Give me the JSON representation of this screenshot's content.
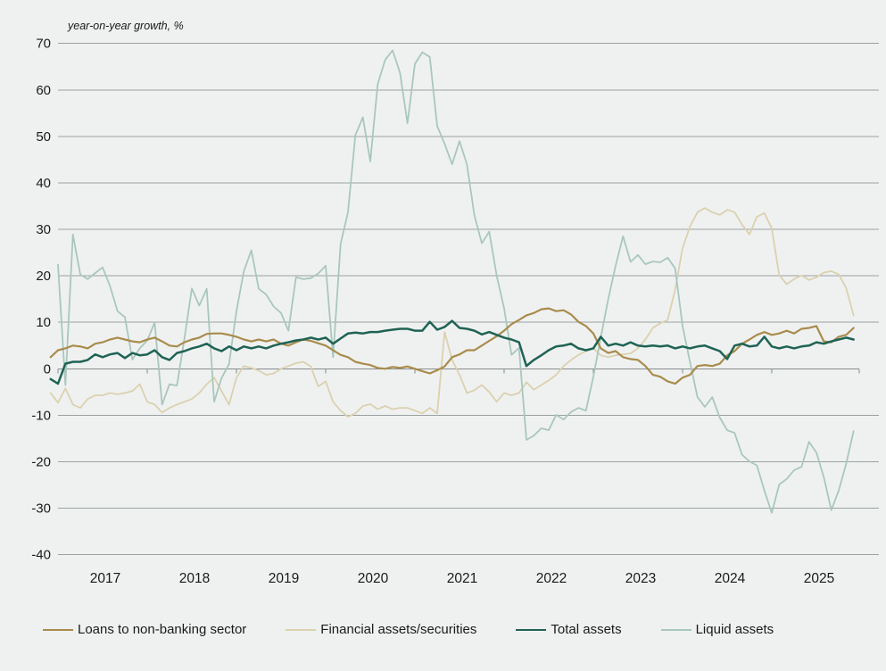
{
  "chart": {
    "unit_label": "year-on-year growth, %",
    "background": "#eff1f1",
    "grid_color": "#9ba1a1",
    "axis_color": "#868c8c",
    "text_color": "#1a1a1a",
    "y_axis": {
      "min": -40,
      "max": 70,
      "step": 10,
      "tick_labels": [
        "70",
        "60",
        "50",
        "40",
        "30",
        "20",
        "10",
        "0",
        "-10",
        "-20",
        "-30",
        "-40"
      ]
    },
    "x_axis": {
      "year_labels": [
        "2017",
        "2018",
        "2019",
        "2020",
        "2021",
        "2022",
        "2023",
        "2024",
        "2025"
      ]
    }
  },
  "chart_data": {
    "type": "line",
    "title": "",
    "xlabel": "",
    "ylabel": "year-on-year growth, %",
    "x_start": "2016-12",
    "x_step_months": 1,
    "ylim": [
      -40,
      70
    ],
    "grid": true,
    "legend_position": "bottom",
    "series": [
      {
        "name": "Loans to non-banking sector",
        "color": "#a98c4c",
        "width": 2.2,
        "values": [
          2.5,
          4.0,
          4.4,
          5.0,
          4.8,
          4.4,
          5.4,
          5.7,
          6.3,
          6.7,
          6.3,
          5.9,
          5.7,
          6.3,
          6.7,
          5.9,
          5.0,
          4.8,
          5.7,
          6.3,
          6.7,
          7.5,
          7.6,
          7.6,
          7.3,
          6.9,
          6.3,
          5.9,
          6.3,
          5.9,
          6.3,
          5.4,
          5.0,
          5.7,
          6.3,
          6.0,
          5.5,
          5.0,
          4.0,
          3.0,
          2.5,
          1.5,
          1.1,
          0.8,
          0.2,
          0.0,
          0.4,
          0.2,
          0.5,
          0.0,
          -0.5,
          -1.0,
          -0.3,
          0.5,
          2.5,
          3.1,
          4.0,
          4.0,
          5.0,
          6.0,
          7.0,
          8.2,
          9.6,
          10.5,
          11.5,
          12.0,
          12.8,
          13.0,
          12.4,
          12.6,
          11.7,
          10.1,
          9.2,
          7.6,
          4.4,
          3.4,
          3.8,
          2.5,
          2.1,
          1.9,
          0.6,
          -1.3,
          -1.7,
          -2.7,
          -3.2,
          -1.9,
          -1.3,
          0.6,
          0.8,
          0.6,
          1.1,
          2.9,
          3.8,
          5.4,
          6.3,
          7.3,
          7.9,
          7.3,
          7.6,
          8.2,
          7.6,
          8.6,
          8.8,
          9.2,
          5.9,
          5.7,
          6.9,
          7.3,
          8.8
        ]
      },
      {
        "name": "Financial assets/securities",
        "color": "#dbd1ae",
        "width": 1.8,
        "values": [
          -5.2,
          -7.3,
          -4.2,
          -7.7,
          -8.4,
          -6.5,
          -5.7,
          -5.7,
          -5.2,
          -5.5,
          -5.2,
          -4.8,
          -3.3,
          -7.1,
          -7.7,
          -9.4,
          -8.4,
          -7.7,
          -7.1,
          -6.5,
          -5.2,
          -3.3,
          -1.9,
          -4.8,
          -7.7,
          -1.9,
          0.6,
          0.2,
          -0.4,
          -1.3,
          -1.0,
          0.0,
          0.6,
          1.2,
          1.5,
          0.5,
          -3.8,
          -2.7,
          -7.1,
          -9.0,
          -10.3,
          -9.6,
          -8.0,
          -7.6,
          -8.7,
          -8.0,
          -8.7,
          -8.4,
          -8.4,
          -9.0,
          -9.6,
          -8.4,
          -9.6,
          7.9,
          1.9,
          -1.3,
          -5.2,
          -4.6,
          -3.5,
          -5.0,
          -7.1,
          -5.2,
          -5.7,
          -5.2,
          -2.9,
          -4.5,
          -3.5,
          -2.5,
          -1.3,
          0.6,
          1.9,
          3.0,
          3.8,
          4.4,
          2.9,
          2.5,
          2.9,
          3.1,
          3.3,
          4.4,
          6.3,
          8.8,
          9.8,
          10.5,
          17.0,
          26.0,
          30.6,
          33.7,
          34.6,
          33.7,
          33.1,
          34.2,
          33.7,
          31.0,
          28.9,
          32.7,
          33.5,
          30.2,
          20.1,
          18.2,
          19.3,
          20.1,
          19.1,
          19.7,
          20.7,
          21.0,
          20.3,
          17.4,
          11.5
        ]
      },
      {
        "name": "Total assets",
        "color": "#1f6354",
        "width": 2.5,
        "values": [
          -2.2,
          -3.2,
          1.1,
          1.5,
          1.5,
          1.9,
          3.1,
          2.5,
          3.1,
          3.4,
          2.3,
          3.4,
          2.9,
          3.1,
          4.0,
          2.5,
          1.9,
          3.4,
          3.8,
          4.4,
          4.8,
          5.4,
          4.4,
          3.8,
          4.8,
          4.0,
          4.8,
          4.4,
          4.8,
          4.4,
          5.0,
          5.4,
          5.7,
          6.1,
          6.3,
          6.7,
          6.3,
          6.7,
          5.4,
          6.5,
          7.6,
          7.8,
          7.6,
          7.9,
          7.9,
          8.2,
          8.4,
          8.6,
          8.6,
          8.2,
          8.2,
          10.1,
          8.4,
          9.0,
          10.3,
          8.8,
          8.6,
          8.2,
          7.4,
          7.9,
          7.3,
          6.7,
          6.3,
          5.7,
          0.6,
          1.9,
          2.9,
          4.0,
          4.8,
          5.0,
          5.4,
          4.4,
          4.0,
          4.4,
          6.9,
          5.0,
          5.4,
          5.0,
          5.7,
          5.0,
          4.8,
          5.0,
          4.8,
          5.0,
          4.4,
          4.8,
          4.4,
          4.8,
          5.0,
          4.4,
          3.8,
          2.1,
          5.0,
          5.4,
          4.8,
          5.0,
          6.9,
          4.8,
          4.4,
          4.8,
          4.4,
          4.8,
          5.0,
          5.7,
          5.4,
          5.9,
          6.3,
          6.7,
          6.3
        ]
      },
      {
        "name": "Liquid assets",
        "color": "#a9c7bc",
        "width": 1.8,
        "values": [
          null,
          22.4,
          -3.5,
          28.9,
          20.3,
          19.3,
          20.6,
          21.8,
          17.8,
          12.4,
          11.1,
          2.0,
          4.4,
          6.1,
          9.9,
          -7.7,
          -3.3,
          -3.6,
          6.5,
          17.3,
          13.6,
          17.2,
          -7.1,
          -2.0,
          1.0,
          12.4,
          21.0,
          25.5,
          17.2,
          16.0,
          13.4,
          12.0,
          8.2,
          19.7,
          19.3,
          19.5,
          20.5,
          22.2,
          2.5,
          26.8,
          33.7,
          50.3,
          54.1,
          44.6,
          61.2,
          66.5,
          68.5,
          63.7,
          52.8,
          65.6,
          68.1,
          67.1,
          52.2,
          48.4,
          44.0,
          49.0,
          44.0,
          33.0,
          27.0,
          29.5,
          20.0,
          13.0,
          3.0,
          4.5,
          -15.3,
          -14.4,
          -12.8,
          -13.2,
          -9.9,
          -10.9,
          -9.3,
          -8.4,
          -9.0,
          -1.7,
          6.7,
          15.0,
          22.2,
          28.5,
          23.0,
          24.5,
          22.5,
          23.1,
          22.9,
          23.9,
          21.6,
          9.2,
          1.5,
          -6.1,
          -8.2,
          -6.1,
          -10.5,
          -13.2,
          -13.8,
          -18.5,
          -19.9,
          -20.8,
          -26.2,
          -31.0,
          -24.9,
          -23.7,
          -21.8,
          -21.1,
          -15.7,
          -18.0,
          -23.3,
          -30.4,
          -26.2,
          -20.5,
          -13.4
        ]
      }
    ]
  },
  "legend": {
    "items": [
      {
        "label": "Loans to non-banking sector"
      },
      {
        "label": "Financial assets/securities"
      },
      {
        "label": "Total assets"
      },
      {
        "label": "Liquid assets"
      }
    ]
  }
}
